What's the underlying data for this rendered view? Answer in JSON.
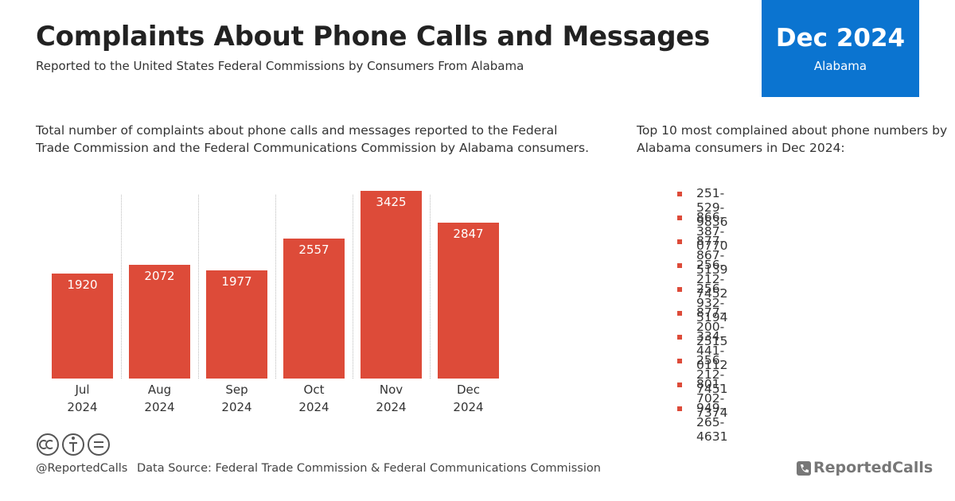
{
  "header": {
    "title": "Complaints About Phone Calls and Messages",
    "subtitle": "Reported to the United States Federal Commissions by Consumers From Alabama"
  },
  "badge": {
    "period": "Dec 2024",
    "region": "Alabama"
  },
  "chart_data": {
    "type": "bar",
    "description": "Total number of complaints about phone calls and messages reported to the Federal Trade Commission and the Federal Communications Commission by Alabama consumers.",
    "categories": [
      "Jul 2024",
      "Aug 2024",
      "Sep 2024",
      "Oct 2024",
      "Nov 2024",
      "Dec 2024"
    ],
    "values": [
      1920,
      2072,
      1977,
      2557,
      3425,
      2847
    ],
    "color": "#dd4b39"
  },
  "list": {
    "description": "Top 10 most complained about phone numbers by Alabama consumers in Dec 2024:",
    "items": [
      "251-529-9836",
      "866-387-0770",
      "877-867-5139",
      "256-212-7452",
      "256-932-5194",
      "877-200-2515",
      "334-441-0112",
      "256-212-7451",
      "801-702-7374",
      "949-265-4631"
    ]
  },
  "footer": {
    "handle": "@ReportedCalls",
    "source": "Data Source: Federal Trade Commission & Federal Communications Commission",
    "brand": "ReportedCalls"
  }
}
